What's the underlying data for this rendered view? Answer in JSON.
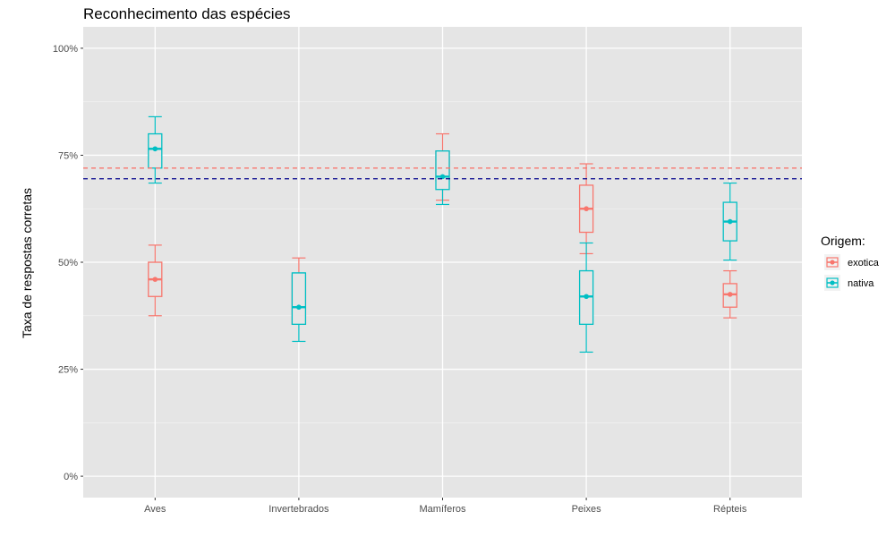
{
  "chart_data": {
    "type": "errorbar",
    "title": "Reconhecimento das espécies",
    "xlabel": "",
    "ylabel": "Taxa de respostas corretas",
    "categories": [
      "Aves",
      "Invertebrados",
      "Mamíferos",
      "Peixes",
      "Répteis"
    ],
    "ylim": [
      -0.05,
      1.05
    ],
    "y_ticks": [
      0,
      0.25,
      0.5,
      0.75,
      1.0
    ],
    "y_tick_labels": [
      "0%",
      "25%",
      "50%",
      "75%",
      "100%"
    ],
    "legend": {
      "title": "Origem:",
      "position": "right"
    },
    "series": [
      {
        "name": "exotica",
        "color": "#F8766D",
        "points": [
          {
            "category": "Aves",
            "mean": 0.46,
            "box_low": 0.42,
            "box_high": 0.5,
            "whisker_low": 0.375,
            "whisker_high": 0.54
          },
          {
            "category": "Invertebrados",
            "mean": 0.43,
            "box_low": 0.355,
            "box_high": 0.47,
            "whisker_low": 0.355,
            "whisker_high": 0.51
          },
          {
            "category": "Mamíferos",
            "mean": 0.72,
            "box_low": 0.69,
            "box_high": 0.76,
            "whisker_low": 0.645,
            "whisker_high": 0.8
          },
          {
            "category": "Peixes",
            "mean": 0.625,
            "box_low": 0.57,
            "box_high": 0.68,
            "whisker_low": 0.52,
            "whisker_high": 0.73
          },
          {
            "category": "Répteis",
            "mean": 0.425,
            "box_low": 0.395,
            "box_high": 0.45,
            "whisker_low": 0.37,
            "whisker_high": 0.48
          }
        ],
        "reference_line": 0.72
      },
      {
        "name": "nativa",
        "color": "#00BFC4",
        "points": [
          {
            "category": "Aves",
            "mean": 0.765,
            "box_low": 0.72,
            "box_high": 0.8,
            "whisker_low": 0.685,
            "whisker_high": 0.84
          },
          {
            "category": "Invertebrados",
            "mean": 0.395,
            "box_low": 0.355,
            "box_high": 0.475,
            "whisker_low": 0.315,
            "whisker_high": 0.475
          },
          {
            "category": "Mamíferos",
            "mean": 0.7,
            "box_low": 0.67,
            "box_high": 0.76,
            "whisker_low": 0.635,
            "whisker_high": 0.76
          },
          {
            "category": "Peixes",
            "mean": 0.42,
            "box_low": 0.355,
            "box_high": 0.48,
            "whisker_low": 0.29,
            "whisker_high": 0.545
          },
          {
            "category": "Répteis",
            "mean": 0.595,
            "box_low": 0.55,
            "box_high": 0.64,
            "whisker_low": 0.505,
            "whisker_high": 0.685
          }
        ],
        "reference_line": 0.695,
        "reference_line_color": "#00008B"
      }
    ],
    "grid": true,
    "panel_background": "#E5E5E5"
  }
}
